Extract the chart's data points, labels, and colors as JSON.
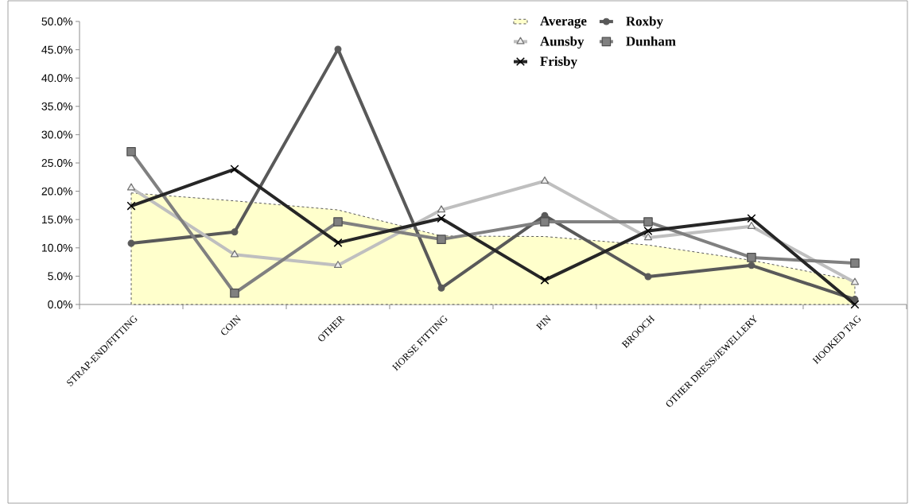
{
  "chart_data": {
    "type": "line",
    "categories": [
      "STRAP-END/FITTING",
      "COIN",
      "OTHER",
      "HORSE FITTING",
      "PIN",
      "BROOCH",
      "OTHER DRESS/JEWELLERY",
      "HOOKED TAG"
    ],
    "series": [
      {
        "name": "Average",
        "type": "area",
        "color": "#ffffcc",
        "line_style": "dashed",
        "marker": "none",
        "values": [
          19.7,
          18.3,
          16.7,
          12.1,
          12.0,
          10.5,
          7.8,
          4.2
        ]
      },
      {
        "name": "Roxby",
        "color": "#595959",
        "marker": "circle",
        "values": [
          10.8,
          12.8,
          45.1,
          2.9,
          15.7,
          4.9,
          6.9,
          0.9
        ]
      },
      {
        "name": "Aunsby",
        "color": "#bfbfbf",
        "marker": "triangle",
        "values": [
          20.6,
          8.8,
          6.9,
          16.7,
          21.8,
          11.8,
          13.8,
          3.9
        ]
      },
      {
        "name": "Dunham",
        "color": "#808080",
        "marker": "square",
        "values": [
          27.0,
          2.0,
          14.6,
          11.5,
          14.6,
          14.6,
          8.3,
          7.3
        ]
      },
      {
        "name": "Frisby",
        "color": "#262626",
        "marker": "cross",
        "values": [
          17.4,
          23.9,
          10.9,
          15.2,
          4.3,
          13.0,
          15.2,
          0.0
        ]
      }
    ],
    "ylim": [
      0,
      50
    ],
    "yticks": [
      {
        "value": 0,
        "label": "0.0%"
      },
      {
        "value": 5,
        "label": "5.0%"
      },
      {
        "value": 10,
        "label": "10.0%"
      },
      {
        "value": 15,
        "label": "15.0%"
      },
      {
        "value": 20,
        "label": "20.0%"
      },
      {
        "value": 25,
        "label": "25.0%"
      },
      {
        "value": 30,
        "label": "30.0%"
      },
      {
        "value": 35,
        "label": "35.0%"
      },
      {
        "value": 40,
        "label": "40.0%"
      },
      {
        "value": 45,
        "label": "45.0%"
      },
      {
        "value": 50,
        "label": "50.0%"
      }
    ],
    "grid": false,
    "legend": "top right"
  }
}
